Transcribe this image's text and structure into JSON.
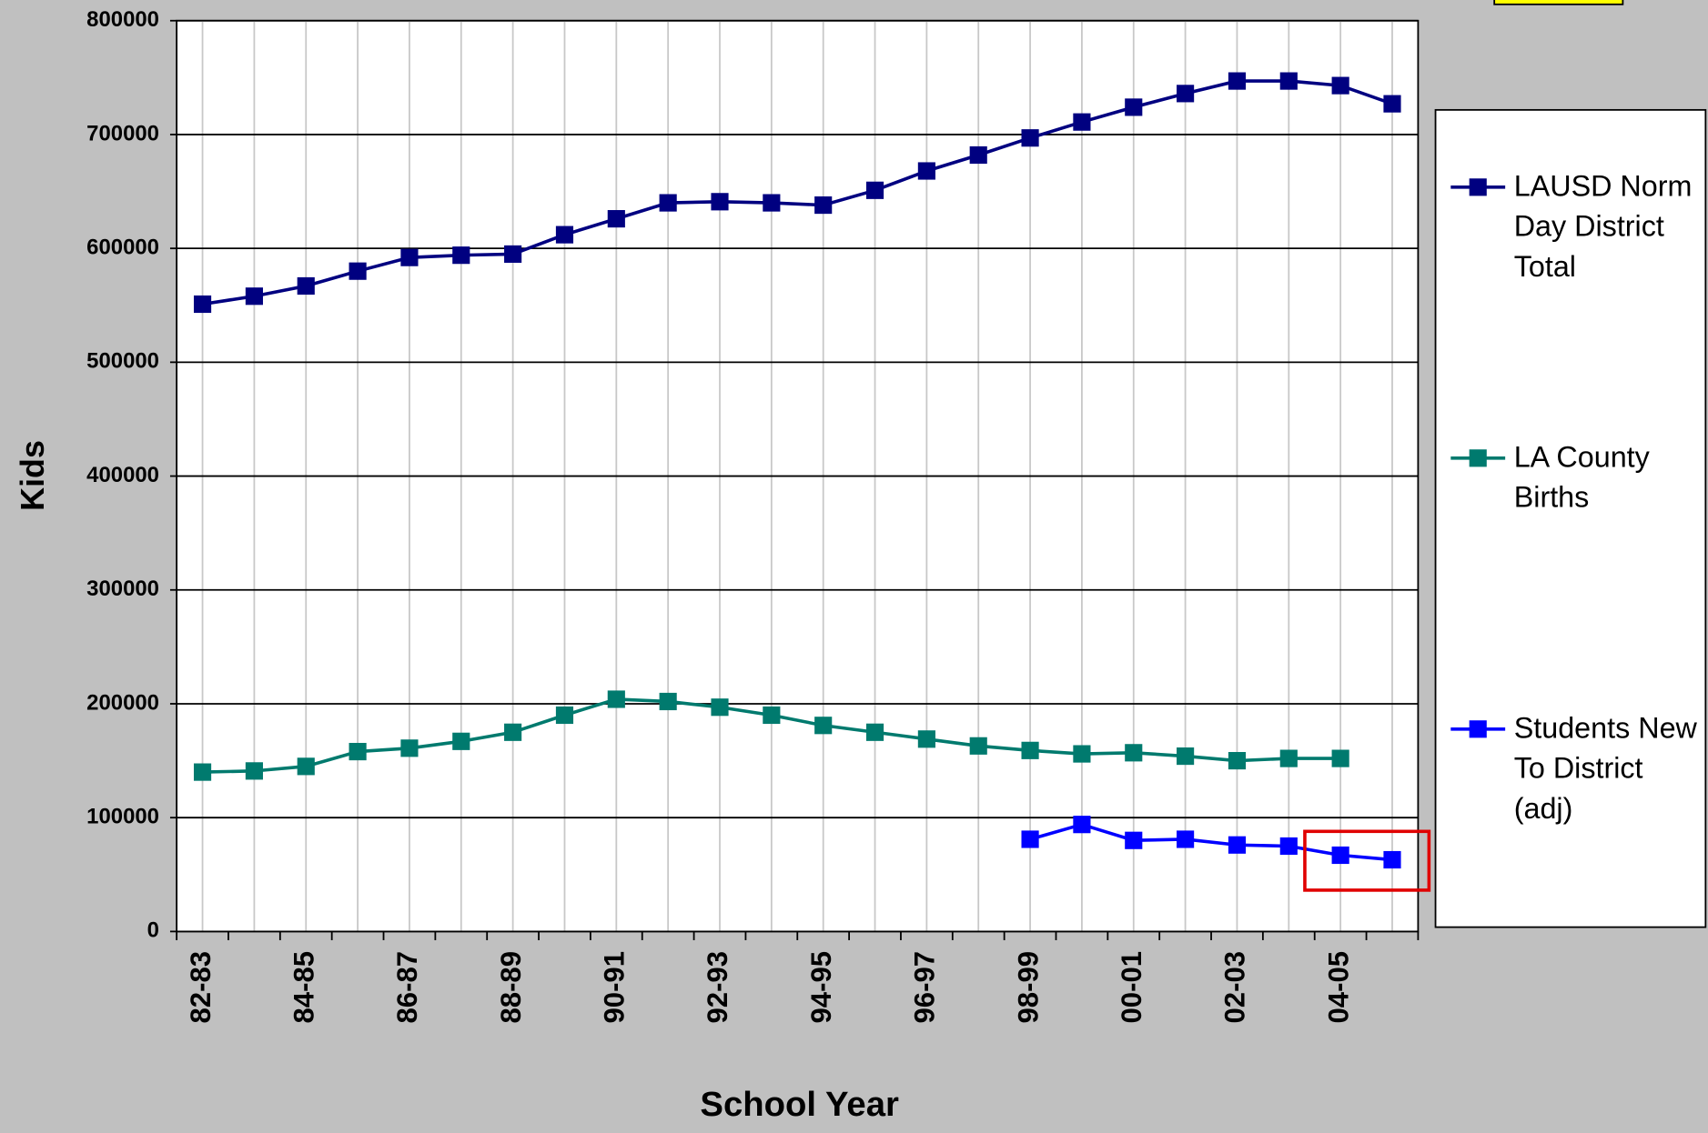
{
  "chart_data": {
    "type": "line",
    "x_label": "School Year",
    "y_label": "Kids",
    "categories": [
      "82-83",
      null,
      "84-85",
      null,
      "86-87",
      null,
      "88-89",
      null,
      "90-91",
      null,
      "92-93",
      null,
      "94-95",
      null,
      "96-97",
      null,
      "98-99",
      null,
      "00-01",
      null,
      "02-03",
      null,
      "04-05",
      null
    ],
    "series": [
      {
        "name": "LAUSD Norm Day District Total",
        "color": "#000080",
        "values": [
          551000,
          558000,
          567000,
          580000,
          592000,
          594000,
          595000,
          612000,
          626000,
          640000,
          641000,
          640000,
          638000,
          651000,
          668000,
          682000,
          697000,
          711000,
          724000,
          736000,
          747000,
          747000,
          743000,
          727000
        ]
      },
      {
        "name": "LA County Births",
        "color": "#007a6e",
        "values": [
          140000,
          141000,
          145000,
          158000,
          161000,
          167000,
          175000,
          190000,
          204000,
          202000,
          197000,
          190000,
          181000,
          175000,
          169000,
          163000,
          159000,
          156000,
          157000,
          154000,
          150000,
          152000,
          152000,
          null
        ]
      },
      {
        "name": "Students New To District (adj)",
        "color": "#0000ff",
        "values": [
          null,
          null,
          null,
          null,
          null,
          null,
          null,
          null,
          null,
          null,
          null,
          null,
          null,
          null,
          null,
          null,
          81000,
          94000,
          80000,
          81000,
          76000,
          75000,
          67000,
          63000
        ]
      }
    ],
    "ylim": [
      0,
      800000
    ],
    "yticks": [
      0,
      100000,
      200000,
      300000,
      400000,
      500000,
      600000,
      700000,
      800000
    ],
    "grid": true,
    "legend": "right"
  }
}
